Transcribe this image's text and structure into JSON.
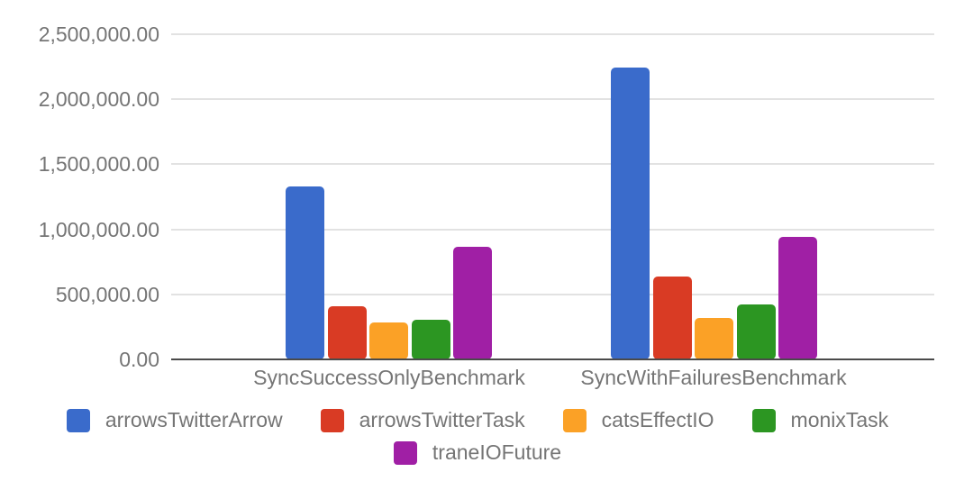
{
  "chart_data": {
    "type": "bar",
    "title": "",
    "xlabel": "",
    "ylabel": "",
    "categories": [
      "SyncSuccessOnlyBenchmark",
      "SyncWithFailuresBenchmark"
    ],
    "series": [
      {
        "name": "arrowsTwitterArrow",
        "color": "#3a6bcb",
        "values": [
          1330000,
          2245000
        ]
      },
      {
        "name": "arrowsTwitterTask",
        "color": "#d93b24",
        "values": [
          410000,
          640000
        ]
      },
      {
        "name": "catsEffectIO",
        "color": "#fba126",
        "values": [
          285000,
          320000
        ]
      },
      {
        "name": "monixTask",
        "color": "#2c9622",
        "values": [
          305000,
          420000
        ]
      },
      {
        "name": "traneIOFuture",
        "color": "#a01fa5",
        "values": [
          865000,
          940000
        ]
      }
    ],
    "y_axis": {
      "min": 0,
      "max": 2500000,
      "tick_interval": 500000,
      "tick_labels": [
        "0.00",
        "500,000.00",
        "1,000,000.00",
        "1,500,000.00",
        "2,000,000.00",
        "2,500,000.00"
      ]
    },
    "legend_position": "bottom",
    "grid": true,
    "styles": {
      "gridline_color": "#e2e2e2",
      "baseline_color": "#4a4a4a",
      "text_color": "#757575",
      "background_color": "#ffffff"
    }
  }
}
